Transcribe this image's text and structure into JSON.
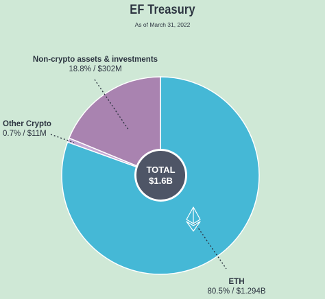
{
  "header": {
    "title": "EF Treasury",
    "subtitle": "As of March 31, 2022"
  },
  "center": {
    "label": "TOTAL",
    "value": "$1.6B"
  },
  "colors": {
    "background": "#cfe8d6",
    "eth": "#45b8d6",
    "non_crypto": "#a983b0",
    "other_crypto": "#c4a8d3",
    "center": "#4e5566"
  },
  "icons": {
    "eth_logo": "ethereum-diamond-icon"
  },
  "chart_data": {
    "type": "pie",
    "title": "EF Treasury",
    "subtitle": "As of March 31, 2022",
    "total_label": "TOTAL",
    "total": "$1.6B",
    "slices": [
      {
        "name": "Non-crypto assets & investments",
        "percent": 18.8,
        "value_label": "18.8% / $302M",
        "amount_musd": 302,
        "color": "#a983b0"
      },
      {
        "name": "Other Crypto",
        "percent": 0.7,
        "value_label": "0.7% / $11M",
        "amount_musd": 11,
        "color": "#c4a8d3"
      },
      {
        "name": "ETH",
        "percent": 80.5,
        "value_label": "80.5% / $1.294B",
        "amount_musd": 1294,
        "color": "#45b8d6"
      }
    ]
  }
}
